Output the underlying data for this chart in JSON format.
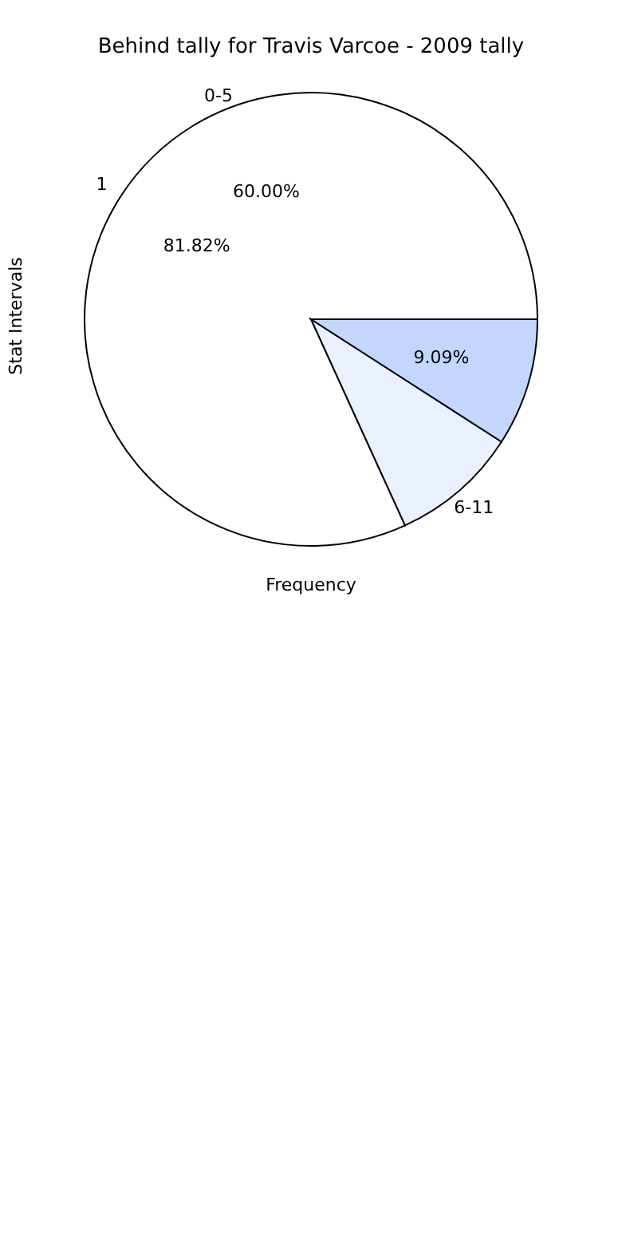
{
  "chart_data": {
    "type": "pie",
    "title": "Behind tally for Travis Varcoe - 2009 tally",
    "xlabel": "Frequency",
    "ylabel": "Stat Intervals",
    "categories": [
      "1",
      "6-11",
      null
    ],
    "values": [
      81.82,
      9.09,
      9.09
    ],
    "colors": [
      "#ffffff",
      "#eaf0fe",
      "#c3d6fe"
    ],
    "value_labels": [
      "81.82%",
      null,
      "9.09%"
    ],
    "annotations": [
      "0-5",
      "60.00%"
    ]
  }
}
